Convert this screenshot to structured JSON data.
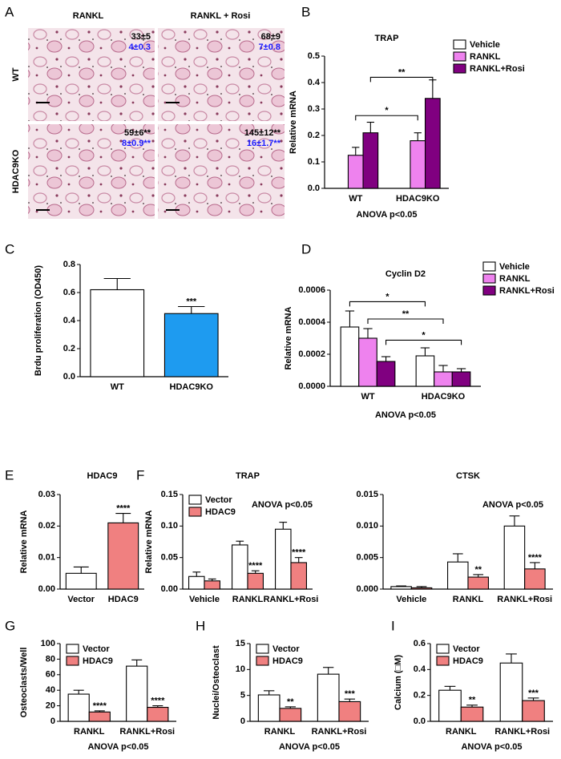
{
  "panel_labels": [
    "A",
    "B",
    "C",
    "D",
    "E",
    "F",
    "G",
    "H",
    "I"
  ],
  "panel_a": {
    "columns": [
      "RANKL",
      "RANKL + Rosi"
    ],
    "rows": [
      "WT",
      "HDAC9KO"
    ],
    "cells": [
      {
        "count": "33±5",
        "sub": "4±0.3"
      },
      {
        "count": "68±9",
        "sub": "7±0.8"
      },
      {
        "count": "59±6**",
        "sub": "8±0.9**"
      },
      {
        "count": "145±12**",
        "sub": "16±1.7**"
      }
    ]
  },
  "chart_data": [
    {
      "type": "bar",
      "title": "TRAP",
      "ylabel": "Relative mRNA",
      "note": "ANOVA p<0.05",
      "categories": [
        "WT",
        "HDAC9KO"
      ],
      "legend": "right",
      "series": [
        {
          "name": "Vehicle",
          "color": "#ffffff",
          "values": [
            0,
            0
          ],
          "errors": [
            null,
            null
          ]
        },
        {
          "name": "RANKL",
          "color": "#ee82ee",
          "values": [
            0.125,
            0.18
          ],
          "errors": [
            0.03,
            0.03
          ]
        },
        {
          "name": "RANKL+Rosi",
          "color": "#800080",
          "values": [
            0.21,
            0.34
          ],
          "errors": [
            0.04,
            0.07
          ]
        }
      ],
      "brackets": [
        "*",
        "**"
      ],
      "ylim": [
        0,
        0.5
      ],
      "yticks": [
        {
          "value": 0,
          "label": "0.0"
        },
        0.1,
        0.2,
        0.3,
        0.4,
        0.5
      ]
    },
    {
      "type": "bar",
      "ylabel": "Brdu proliferation (OD450)",
      "categories": [
        "WT",
        "HDAC9KO"
      ],
      "series": [
        {
          "colors": [
            "#ffffff",
            "#1e9bf0"
          ],
          "values": [
            0.62,
            0.45
          ],
          "errors": [
            0.08,
            0.05
          ],
          "significance": [
            null,
            "***"
          ]
        }
      ],
      "ylim": [
        0,
        0.8
      ],
      "yticks": [
        {
          "value": 0,
          "label": "0.0"
        },
        0.2,
        0.4,
        0.6,
        0.8
      ]
    },
    {
      "type": "bar",
      "title": "Cyclin D2",
      "ylabel": "Relative mRNA",
      "note": "ANOVA p<0.05",
      "categories": [
        "WT",
        "HDAC9KO"
      ],
      "legend": "right",
      "series": [
        {
          "name": "Vehicle",
          "color": "#ffffff",
          "values": [
            0.00037,
            0.00019
          ],
          "errors": [
            0.0001,
            5e-05
          ]
        },
        {
          "name": "RANKL",
          "color": "#ee82ee",
          "values": [
            0.0003,
            9e-05
          ],
          "errors": [
            6e-05,
            4e-05
          ]
        },
        {
          "name": "RANKL+Rosi",
          "color": "#800080",
          "values": [
            0.000155,
            9e-05
          ],
          "errors": [
            3e-05,
            2e-05
          ]
        }
      ],
      "brackets": [
        "*",
        "**",
        "*"
      ],
      "ylim": [
        0,
        0.0006
      ],
      "yticks": [
        {
          "value": 0,
          "label": "0.0000"
        },
        0.0002,
        0.0004,
        0.0006
      ]
    },
    {
      "type": "bar",
      "title": "HDAC9",
      "ylabel": "Relative mRNA",
      "categories": [
        "Vector",
        "HDAC9"
      ],
      "series": [
        {
          "colors": [
            "#ffffff",
            "#f08080"
          ],
          "values": [
            0.005,
            0.021
          ],
          "errors": [
            0.002,
            0.003
          ],
          "significance": [
            null,
            "****"
          ]
        }
      ],
      "ylim": [
        0,
        0.03
      ],
      "yticks": [
        {
          "value": 0,
          "label": "0.00"
        },
        0.01,
        0.02,
        0.03
      ]
    },
    {
      "type": "bar",
      "title": "TRAP",
      "ylabel": "Relative mRNA",
      "note": "ANOVA p<0.05",
      "categories": [
        "Vehicle",
        "RANKL",
        "RANKL+Rosi"
      ],
      "legend": "upper left",
      "series": [
        {
          "name": "Vector",
          "color": "#ffffff",
          "values": [
            0.02,
            0.07,
            0.095
          ],
          "errors": [
            0.007,
            0.006,
            0.011
          ]
        },
        {
          "name": "HDAC9",
          "color": "#f08080",
          "values": [
            0.013,
            0.025,
            0.042
          ],
          "errors": [
            0.003,
            0.004,
            0.008
          ],
          "significance": [
            null,
            "****",
            "****"
          ]
        }
      ],
      "ylim": [
        0,
        0.15
      ],
      "yticks": [
        {
          "value": 0,
          "label": "0.00"
        },
        0.05,
        {
          "value": 0.1,
          "label": "0.10"
        },
        0.15
      ]
    },
    {
      "type": "bar",
      "title": "CTSK",
      "note": "ANOVA p<0.05",
      "categories": [
        "Vehicle",
        "RANKL",
        "RANKL+Rosi"
      ],
      "series": [
        {
          "color": "#ffffff",
          "values": [
            0.0004,
            0.0043,
            0.01
          ],
          "errors": [
            0.0001,
            0.0013,
            0.0016
          ]
        },
        {
          "color": "#f08080",
          "values": [
            0.0002,
            0.0019,
            0.0032
          ],
          "errors": [
            0.0002,
            0.0004,
            0.001
          ],
          "significance": [
            null,
            "**",
            "****"
          ]
        }
      ],
      "ylim": [
        0,
        0.015
      ],
      "yticks": [
        {
          "value": 0,
          "label": "0.000"
        },
        0.005,
        {
          "value": 0.01,
          "label": "0.010"
        },
        0.015
      ]
    },
    {
      "type": "bar",
      "ylabel": "Osteoclasts/Well",
      "note": "ANOVA p<0.05",
      "categories": [
        "RANKL",
        "RANKL+Rosi"
      ],
      "legend": "upper left",
      "series": [
        {
          "name": "Vector",
          "color": "#ffffff",
          "values": [
            35,
            71
          ],
          "errors": [
            5,
            8
          ]
        },
        {
          "name": "HDAC9",
          "color": "#f08080",
          "values": [
            12,
            18
          ],
          "errors": [
            1.5,
            2
          ],
          "significance": [
            "****",
            "****"
          ]
        }
      ],
      "ylim": [
        0,
        100
      ],
      "yticks": [
        0,
        20,
        40,
        60,
        80,
        100
      ]
    },
    {
      "type": "bar",
      "ylabel": "Nuclei/Osteoclast",
      "note": "ANOVA p<0.05",
      "categories": [
        "RANKL",
        "RANKL+Rosi"
      ],
      "legend": "upper left",
      "series": [
        {
          "name": "Vector",
          "color": "#ffffff",
          "values": [
            5.1,
            9.1
          ],
          "errors": [
            0.8,
            1.3
          ]
        },
        {
          "name": "HDAC9",
          "color": "#f08080",
          "values": [
            2.5,
            3.8
          ],
          "errors": [
            0.3,
            0.5
          ],
          "significance": [
            "**",
            "***"
          ]
        }
      ],
      "ylim": [
        0,
        15
      ],
      "yticks": [
        0,
        5,
        10,
        15
      ]
    },
    {
      "type": "bar",
      "ylabel": "Calcium (□M)",
      "note": "ANOVA p<0.05",
      "categories": [
        "RANKL",
        "RANKL+Rosi"
      ],
      "legend": "upper left",
      "series": [
        {
          "name": "Vector",
          "color": "#ffffff",
          "values": [
            0.24,
            0.45
          ],
          "errors": [
            0.03,
            0.07
          ]
        },
        {
          "name": "HDAC9",
          "color": "#f08080",
          "values": [
            0.11,
            0.16
          ],
          "errors": [
            0.015,
            0.02
          ],
          "significance": [
            "**",
            "***"
          ]
        }
      ],
      "ylim": [
        0,
        0.6
      ],
      "yticks": [
        {
          "value": 0,
          "label": "0.0"
        },
        0.2,
        0.4,
        0.6
      ]
    }
  ]
}
